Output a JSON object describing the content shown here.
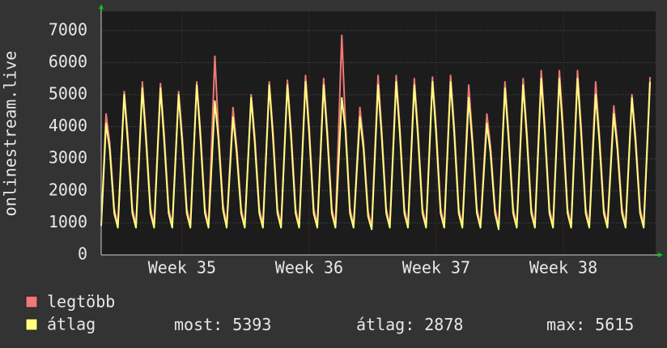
{
  "chart_data": {
    "type": "line",
    "y_label": "onlinestream.live",
    "x": [
      0,
      0.27,
      0.47,
      0.72,
      0.92,
      1.27,
      1.47,
      1.72,
      1.92,
      2.27,
      2.47,
      2.72,
      2.92,
      3.27,
      3.47,
      3.72,
      3.92,
      4.27,
      4.47,
      4.72,
      4.92,
      5.27,
      5.47,
      5.72,
      5.92,
      6.27,
      6.47,
      6.72,
      6.92,
      7.27,
      7.47,
      7.72,
      7.92,
      8.27,
      8.47,
      8.72,
      8.92,
      9.27,
      9.47,
      9.72,
      9.92,
      10.27,
      10.47,
      10.72,
      10.92,
      11.27,
      11.47,
      11.72,
      11.92,
      12.27,
      12.47,
      12.72,
      12.92,
      13.27,
      13.47,
      13.72,
      13.92,
      14.27,
      14.47,
      14.72,
      14.92,
      15.27,
      15.47,
      15.72,
      15.92,
      16.27,
      16.47,
      16.72,
      16.92,
      17.27,
      17.47,
      17.72,
      17.92,
      18.27,
      18.47,
      18.72,
      18.92,
      19.27,
      19.47,
      19.72,
      19.92,
      20.27,
      20.47,
      20.72,
      20.92,
      21.27,
      21.47,
      21.72,
      21.92,
      22.27,
      22.47,
      22.72,
      22.92,
      23.27,
      23.47,
      23.72,
      23.92,
      24.27,
      24.47,
      24.72,
      24.92,
      25.27,
      25.47,
      25.72,
      25.92,
      26.27,
      26.47,
      26.72,
      26.92,
      27.27,
      27.47,
      27.72,
      27.92,
      28.27,
      28.47,
      28.72,
      28.92,
      29.27,
      29.47,
      29.72,
      29.92,
      30.27
    ],
    "series": [
      {
        "name": "legtöbb",
        "color": "#f07878",
        "values": [
          950,
          4400,
          3500,
          1450,
          930,
          5100,
          3700,
          1450,
          930,
          5400,
          3800,
          1450,
          930,
          5350,
          3800,
          1450,
          930,
          5100,
          3700,
          1450,
          930,
          5400,
          3900,
          1450,
          930,
          6200,
          3800,
          1550,
          930,
          4600,
          3400,
          1450,
          930,
          5000,
          3700,
          1450,
          930,
          5400,
          3900,
          1450,
          930,
          5450,
          3900,
          1450,
          930,
          5600,
          4000,
          1450,
          930,
          5500,
          3900,
          1450,
          930,
          6850,
          4100,
          1450,
          930,
          4600,
          3500,
          1350,
          880,
          5600,
          3900,
          1450,
          930,
          5600,
          4000,
          1450,
          930,
          5500,
          3900,
          1450,
          930,
          5550,
          4000,
          1450,
          930,
          5600,
          4000,
          1450,
          930,
          5300,
          3700,
          1450,
          930,
          4400,
          3400,
          1450,
          880,
          5400,
          3800,
          1450,
          930,
          5500,
          3900,
          1450,
          930,
          5750,
          4000,
          1450,
          930,
          5750,
          4000,
          1450,
          930,
          5750,
          4000,
          1450,
          930,
          5400,
          3800,
          1450,
          930,
          4650,
          3500,
          1450,
          930,
          5000,
          3700,
          1450,
          930,
          5550
        ]
      },
      {
        "name": "átlag",
        "color": "#ffff80",
        "values": [
          900,
          4100,
          3300,
          1300,
          850,
          5000,
          3500,
          1300,
          850,
          5200,
          3600,
          1300,
          850,
          5200,
          3600,
          1300,
          850,
          5000,
          3500,
          1300,
          850,
          5300,
          3700,
          1300,
          850,
          4800,
          3600,
          1400,
          850,
          4300,
          3200,
          1300,
          850,
          4900,
          3500,
          1300,
          850,
          5300,
          3700,
          1300,
          850,
          5300,
          3700,
          1300,
          850,
          5400,
          3800,
          1300,
          850,
          5300,
          3700,
          1300,
          850,
          4900,
          3900,
          1300,
          850,
          4300,
          3300,
          1200,
          800,
          5300,
          3700,
          1300,
          850,
          5400,
          3800,
          1300,
          850,
          5300,
          3700,
          1300,
          850,
          5400,
          3800,
          1300,
          850,
          5400,
          3800,
          1300,
          850,
          4900,
          3500,
          1300,
          850,
          4100,
          3200,
          1300,
          800,
          5200,
          3600,
          1300,
          850,
          5300,
          3700,
          1300,
          850,
          5500,
          3800,
          1300,
          850,
          5500,
          3800,
          1300,
          850,
          5500,
          3800,
          1300,
          850,
          5000,
          3600,
          1300,
          850,
          4400,
          3300,
          1300,
          850,
          4900,
          3500,
          1300,
          850,
          5400
        ]
      }
    ],
    "xlim": [
      0,
      30.58
    ],
    "xticks": [
      {
        "value": 4.46,
        "label": "Week 35"
      },
      {
        "value": 11.47,
        "label": "Week 36"
      },
      {
        "value": 18.48,
        "label": "Week 37"
      },
      {
        "value": 25.49,
        "label": "Week 38"
      }
    ],
    "ylim": [
      0,
      7600
    ],
    "yticks": [
      0,
      1000,
      2000,
      3000,
      4000,
      5000,
      6000,
      7000
    ],
    "grid": true,
    "stats": [
      {
        "label": "most:",
        "value": 5393
      },
      {
        "label": "átlag:",
        "value": 2878
      },
      {
        "label": "max:",
        "value": 5615
      }
    ]
  }
}
